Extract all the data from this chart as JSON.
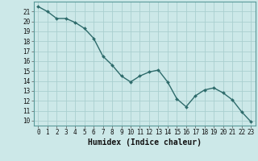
{
  "x": [
    0,
    1,
    2,
    3,
    4,
    5,
    6,
    7,
    8,
    9,
    10,
    11,
    12,
    13,
    14,
    15,
    16,
    17,
    18,
    19,
    20,
    21,
    22,
    23
  ],
  "y": [
    21.5,
    21.0,
    20.3,
    20.3,
    19.9,
    19.3,
    18.3,
    16.5,
    15.6,
    14.5,
    13.9,
    14.5,
    14.9,
    15.1,
    13.9,
    12.2,
    11.4,
    12.5,
    13.1,
    13.3,
    12.8,
    12.1,
    10.9,
    9.9
  ],
  "line_color": "#2e6b6b",
  "marker": "D",
  "marker_size": 2.0,
  "xlabel": "Humidex (Indice chaleur)",
  "ylim": [
    9.5,
    22.0
  ],
  "xlim": [
    -0.5,
    23.5
  ],
  "yticks": [
    10,
    11,
    12,
    13,
    14,
    15,
    16,
    17,
    18,
    19,
    20,
    21
  ],
  "xticks": [
    0,
    1,
    2,
    3,
    4,
    5,
    6,
    7,
    8,
    9,
    10,
    11,
    12,
    13,
    14,
    15,
    16,
    17,
    18,
    19,
    20,
    21,
    22,
    23
  ],
  "bg_color": "#cce8e8",
  "grid_color": "#aacfcf",
  "linewidth": 1.0,
  "xlabel_fontsize": 7,
  "tick_fontsize": 5.5
}
